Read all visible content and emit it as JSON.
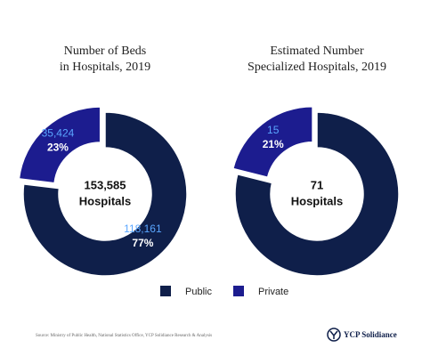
{
  "chart_data": [
    {
      "type": "donut",
      "title": [
        "Number of Beds",
        "in Hospitals, 2019"
      ],
      "categories": [
        "Public",
        "Private"
      ],
      "colors": [
        "#0f1f4a",
        "#1c1c8f"
      ],
      "values": [
        118161,
        35424
      ],
      "value_labels": [
        "118,161",
        "35,424"
      ],
      "share_labels": [
        "77%",
        "23%"
      ],
      "total": 153585,
      "total_label": "153,585",
      "center_label": "Hospitals"
    },
    {
      "type": "donut",
      "title": [
        "Estimated Number",
        "Specialized Hospitals, 2019"
      ],
      "categories": [
        "Public",
        "Private"
      ],
      "colors": [
        "#0f1f4a",
        "#1c1c8f"
      ],
      "values": [
        56,
        15
      ],
      "value_labels": [
        null,
        "15"
      ],
      "share_labels": [
        null,
        "21%"
      ],
      "total": 71,
      "center_label": "Hospitals"
    }
  ],
  "source": "Source: Ministry of Public Health, National Statistics Office, YCP Solidiance Research & Analysis",
  "brand": "YCP Solidiance"
}
